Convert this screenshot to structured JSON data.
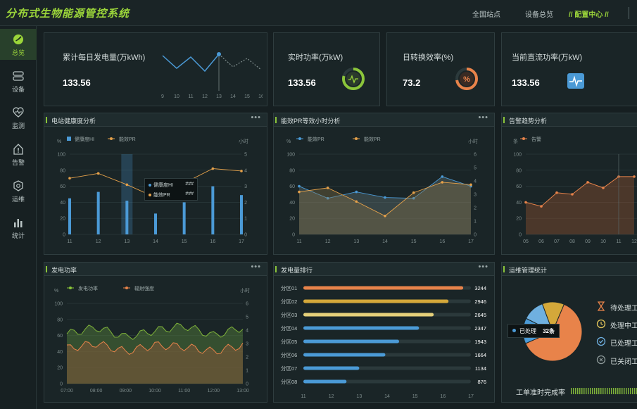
{
  "app": {
    "title": "分布式生物能源管控系统"
  },
  "topnav": [
    "全国站点",
    "设备总览",
    "配置中心"
  ],
  "sidebar": [
    {
      "label": "总览",
      "icon": "overview-icon"
    },
    {
      "label": "设备",
      "icon": "device-icon"
    },
    {
      "label": "监测",
      "icon": "monitor-icon"
    },
    {
      "label": "告警",
      "icon": "alarm-icon"
    },
    {
      "label": "运维",
      "icon": "maintenance-icon"
    },
    {
      "label": "统计",
      "icon": "statistics-icon"
    }
  ],
  "kpis": {
    "daily": {
      "label": "累计每日发电量(万kWh)",
      "value": "133.56",
      "x": [
        "9",
        "10",
        "11",
        "12",
        "13",
        "14",
        "15",
        "16"
      ]
    },
    "power": {
      "label": "实时功率(万kW)",
      "value": "133.56"
    },
    "efficiency": {
      "label": "日转换效率(%)",
      "value": "73.2"
    },
    "dc": {
      "label": "当前直流功率(万kW)",
      "value": "133.56"
    }
  },
  "colors": {
    "accent": "#9bd53a",
    "blue": "#4b9ad6",
    "orange": "#e8834a",
    "yellow": "#e5c75a"
  },
  "panels": {
    "health": {
      "title": "电站健康度分析",
      "more": "•••",
      "yl": "%",
      "yr": "小时",
      "legend": [
        "健康度HI",
        "能效PR"
      ],
      "tooltip": {
        "a": "健康度HI",
        "av": "###",
        "b": "能效PR",
        "bv": "###"
      }
    },
    "pr": {
      "title": "能效PR等效小时分析",
      "more": "•••",
      "yl": "%",
      "yr": "小时",
      "legend": [
        "能效PR",
        "能效PR"
      ]
    },
    "alarm": {
      "title": "告警趋势分析",
      "yl": "条",
      "legend": [
        "告警"
      ]
    },
    "gen": {
      "title": "发电功率",
      "more": "•••",
      "yl": "%",
      "yr": "小时",
      "legend": [
        "发电功率",
        "辐射强度"
      ]
    },
    "rank": {
      "title": "发电量排行",
      "more": "•••"
    },
    "ops": {
      "title": "运维管理统计",
      "tooltip": {
        "label": "已处理",
        "value": "32条"
      },
      "items": [
        "待处理工",
        "处理中工",
        "已处理工",
        "已关闭工"
      ],
      "footer": "工单准时完成率"
    }
  },
  "chart_data": [
    {
      "type": "line",
      "title": "",
      "x": [
        "9",
        "10",
        "11",
        "12",
        "13",
        "14",
        "15",
        "16"
      ],
      "values": [
        30,
        12,
        28,
        8,
        32,
        14,
        26,
        10
      ]
    },
    {
      "type": "bar",
      "categories": [
        "11",
        "12",
        "13",
        "14",
        "15",
        "16",
        "17"
      ],
      "series": [
        {
          "name": "健康度HI",
          "values": [
            45,
            53,
            42,
            26,
            40,
            60,
            49
          ]
        },
        {
          "name": "能效PR",
          "values": [
            70,
            76,
            62,
            46,
            64,
            82,
            79
          ]
        }
      ],
      "ylim": [
        0,
        100
      ],
      "yticks": [
        "0",
        "20",
        "40",
        "60",
        "80",
        "100"
      ],
      "yticks_r": [
        "0",
        "1",
        "2",
        "3",
        "4",
        "5"
      ]
    },
    {
      "type": "area",
      "categories": [
        "11",
        "12",
        "13",
        "14",
        "15",
        "16",
        "17"
      ],
      "series": [
        {
          "name": "能效PR",
          "values": [
            60,
            45,
            53,
            46,
            45,
            72,
            60
          ]
        },
        {
          "name": "能效PR",
          "values": [
            53,
            58,
            41,
            23,
            52,
            65,
            62
          ]
        }
      ],
      "ylim": [
        0,
        100
      ],
      "yticks": [
        "0",
        "20",
        "40",
        "60",
        "80",
        "100"
      ],
      "yticks_r": [
        "0",
        "1",
        "2",
        "3",
        "4",
        "5",
        "6"
      ]
    },
    {
      "type": "area",
      "categories": [
        "05",
        "06",
        "07",
        "08",
        "09",
        "10",
        "11",
        "12"
      ],
      "series": [
        {
          "name": "告警",
          "values": [
            40,
            35,
            52,
            50,
            65,
            58,
            72,
            72
          ]
        }
      ],
      "ylim": [
        0,
        100
      ],
      "yticks": [
        "0",
        "20",
        "40",
        "60",
        "80",
        "100"
      ]
    },
    {
      "type": "area",
      "categories": [
        "07:00",
        "08:00",
        "09:00",
        "10:00",
        "11:00",
        "12:00",
        "13:00"
      ],
      "series": [
        {
          "name": "发电功率",
          "values": [
            62,
            70,
            58,
            66,
            72,
            60,
            70
          ]
        },
        {
          "name": "辐射强度",
          "values": [
            44,
            50,
            40,
            48,
            46,
            40,
            48
          ]
        }
      ],
      "ylim": [
        0,
        100
      ],
      "yticks": [
        "0",
        "20",
        "40",
        "60",
        "80",
        "100"
      ],
      "yticks_r": [
        "0",
        "1",
        "2",
        "3",
        "4",
        "5",
        "6"
      ]
    },
    {
      "type": "bar",
      "orientation": "horizontal",
      "categories": [
        "分区01",
        "分区02",
        "分区03",
        "分区04",
        "分区05",
        "分区06",
        "分区07",
        "分区08"
      ],
      "values": [
        3244,
        2946,
        2645,
        2347,
        1943,
        1664,
        1134,
        876
      ],
      "value_labels": [
        "3244",
        "2946",
        "2645",
        "2347",
        "1943",
        "1664",
        "1134",
        "876"
      ],
      "xticks": [
        "11",
        "12",
        "13",
        "14",
        "15",
        "16",
        "17"
      ]
    },
    {
      "type": "pie",
      "labels": [
        "已处理",
        "待处理",
        "处理中",
        "已关闭"
      ],
      "values": [
        62,
        14,
        12,
        12
      ]
    }
  ]
}
